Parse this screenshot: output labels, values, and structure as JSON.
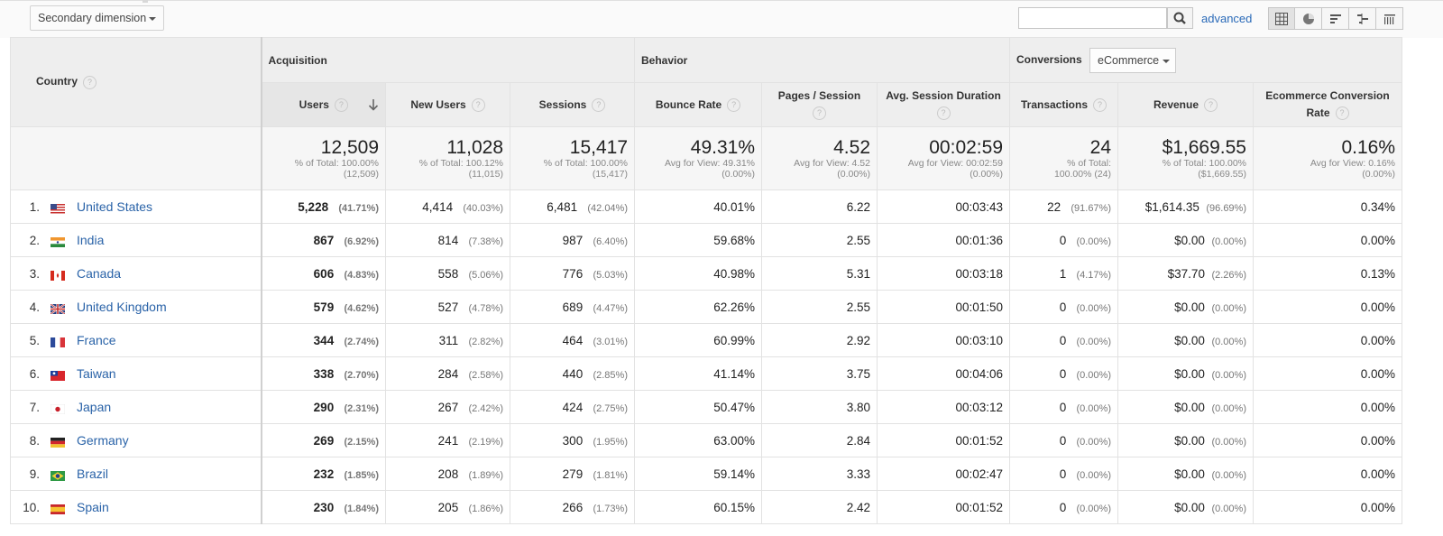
{
  "toolbar": {
    "secondary_dimension_label": "Secondary dimension",
    "search_placeholder": "",
    "advanced_label": "advanced",
    "view_buttons": [
      "data-table-icon",
      "pie-chart-icon",
      "performance-bar-icon",
      "comparison-icon",
      "pivot-table-icon"
    ]
  },
  "header": {
    "country": "Country",
    "groups": {
      "acquisition": "Acquisition",
      "behavior": "Behavior",
      "conversions": "Conversions",
      "conversion_type": "eCommerce"
    },
    "columns": {
      "users": "Users",
      "new_users": "New Users",
      "sessions": "Sessions",
      "bounce_rate": "Bounce Rate",
      "pages_session": "Pages / Session",
      "avg_duration": "Avg. Session Duration",
      "transactions": "Transactions",
      "revenue": "Revenue",
      "conv_rate": "Ecommerce Conversion Rate"
    },
    "help_glyph": "?"
  },
  "totals": {
    "users": {
      "value": "12,509",
      "line1": "% of Total: 100.00%",
      "line2": "(12,509)"
    },
    "new_users": {
      "value": "11,028",
      "line1": "% of Total: 100.12%",
      "line2": "(11,015)"
    },
    "sessions": {
      "value": "15,417",
      "line1": "% of Total: 100.00%",
      "line2": "(15,417)"
    },
    "bounce_rate": {
      "value": "49.31%",
      "line1": "Avg for View: 49.31%",
      "line2": "(0.00%)"
    },
    "pages_session": {
      "value": "4.52",
      "line1": "Avg for View: 4.52",
      "line2": "(0.00%)"
    },
    "avg_duration": {
      "value": "00:02:59",
      "line1": "Avg for View: 00:02:59",
      "line2": "(0.00%)"
    },
    "transactions": {
      "value": "24",
      "line1": "% of Total:",
      "line2": "100.00% (24)"
    },
    "revenue": {
      "value": "$1,669.55",
      "line1": "% of Total: 100.00%",
      "line2": "($1,669.55)"
    },
    "conv_rate": {
      "value": "0.16%",
      "line1": "Avg for View: 0.16%",
      "line2": "(0.00%)"
    }
  },
  "rows": [
    {
      "n": "1.",
      "country": "United States",
      "flag": "us",
      "users": "5,228",
      "users_pct": "(41.71%)",
      "new_users": "4,414",
      "new_users_pct": "(40.03%)",
      "sessions": "6,481",
      "sessions_pct": "(42.04%)",
      "bounce": "40.01%",
      "pages": "6.22",
      "duration": "00:03:43",
      "trans": "22",
      "trans_pct": "(91.67%)",
      "revenue": "$1,614.35",
      "revenue_pct": "(96.69%)",
      "conv": "0.34%"
    },
    {
      "n": "2.",
      "country": "India",
      "flag": "in",
      "users": "867",
      "users_pct": "(6.92%)",
      "new_users": "814",
      "new_users_pct": "(7.38%)",
      "sessions": "987",
      "sessions_pct": "(6.40%)",
      "bounce": "59.68%",
      "pages": "2.55",
      "duration": "00:01:36",
      "trans": "0",
      "trans_pct": "(0.00%)",
      "revenue": "$0.00",
      "revenue_pct": "(0.00%)",
      "conv": "0.00%"
    },
    {
      "n": "3.",
      "country": "Canada",
      "flag": "ca",
      "users": "606",
      "users_pct": "(4.83%)",
      "new_users": "558",
      "new_users_pct": "(5.06%)",
      "sessions": "776",
      "sessions_pct": "(5.03%)",
      "bounce": "40.98%",
      "pages": "5.31",
      "duration": "00:03:18",
      "trans": "1",
      "trans_pct": "(4.17%)",
      "revenue": "$37.70",
      "revenue_pct": "(2.26%)",
      "conv": "0.13%"
    },
    {
      "n": "4.",
      "country": "United Kingdom",
      "flag": "gb",
      "users": "579",
      "users_pct": "(4.62%)",
      "new_users": "527",
      "new_users_pct": "(4.78%)",
      "sessions": "689",
      "sessions_pct": "(4.47%)",
      "bounce": "62.26%",
      "pages": "2.55",
      "duration": "00:01:50",
      "trans": "0",
      "trans_pct": "(0.00%)",
      "revenue": "$0.00",
      "revenue_pct": "(0.00%)",
      "conv": "0.00%"
    },
    {
      "n": "5.",
      "country": "France",
      "flag": "fr",
      "users": "344",
      "users_pct": "(2.74%)",
      "new_users": "311",
      "new_users_pct": "(2.82%)",
      "sessions": "464",
      "sessions_pct": "(3.01%)",
      "bounce": "60.99%",
      "pages": "2.92",
      "duration": "00:03:10",
      "trans": "0",
      "trans_pct": "(0.00%)",
      "revenue": "$0.00",
      "revenue_pct": "(0.00%)",
      "conv": "0.00%"
    },
    {
      "n": "6.",
      "country": "Taiwan",
      "flag": "tw",
      "users": "338",
      "users_pct": "(2.70%)",
      "new_users": "284",
      "new_users_pct": "(2.58%)",
      "sessions": "440",
      "sessions_pct": "(2.85%)",
      "bounce": "41.14%",
      "pages": "3.75",
      "duration": "00:04:06",
      "trans": "0",
      "trans_pct": "(0.00%)",
      "revenue": "$0.00",
      "revenue_pct": "(0.00%)",
      "conv": "0.00%"
    },
    {
      "n": "7.",
      "country": "Japan",
      "flag": "jp",
      "users": "290",
      "users_pct": "(2.31%)",
      "new_users": "267",
      "new_users_pct": "(2.42%)",
      "sessions": "424",
      "sessions_pct": "(2.75%)",
      "bounce": "50.47%",
      "pages": "3.80",
      "duration": "00:03:12",
      "trans": "0",
      "trans_pct": "(0.00%)",
      "revenue": "$0.00",
      "revenue_pct": "(0.00%)",
      "conv": "0.00%"
    },
    {
      "n": "8.",
      "country": "Germany",
      "flag": "de",
      "users": "269",
      "users_pct": "(2.15%)",
      "new_users": "241",
      "new_users_pct": "(2.19%)",
      "sessions": "300",
      "sessions_pct": "(1.95%)",
      "bounce": "63.00%",
      "pages": "2.84",
      "duration": "00:01:52",
      "trans": "0",
      "trans_pct": "(0.00%)",
      "revenue": "$0.00",
      "revenue_pct": "(0.00%)",
      "conv": "0.00%"
    },
    {
      "n": "9.",
      "country": "Brazil",
      "flag": "br",
      "users": "232",
      "users_pct": "(1.85%)",
      "new_users": "208",
      "new_users_pct": "(1.89%)",
      "sessions": "279",
      "sessions_pct": "(1.81%)",
      "bounce": "59.14%",
      "pages": "3.33",
      "duration": "00:02:47",
      "trans": "0",
      "trans_pct": "(0.00%)",
      "revenue": "$0.00",
      "revenue_pct": "(0.00%)",
      "conv": "0.00%"
    },
    {
      "n": "10.",
      "country": "Spain",
      "flag": "es",
      "users": "230",
      "users_pct": "(1.84%)",
      "new_users": "205",
      "new_users_pct": "(1.86%)",
      "sessions": "266",
      "sessions_pct": "(1.73%)",
      "bounce": "60.15%",
      "pages": "2.42",
      "duration": "00:01:52",
      "trans": "0",
      "trans_pct": "(0.00%)",
      "revenue": "$0.00",
      "revenue_pct": "(0.00%)",
      "conv": "0.00%"
    }
  ],
  "colors": {
    "link": "#2a63a8",
    "header_bg": "#eeeeee",
    "totals_bg": "#f6f6f6"
  }
}
